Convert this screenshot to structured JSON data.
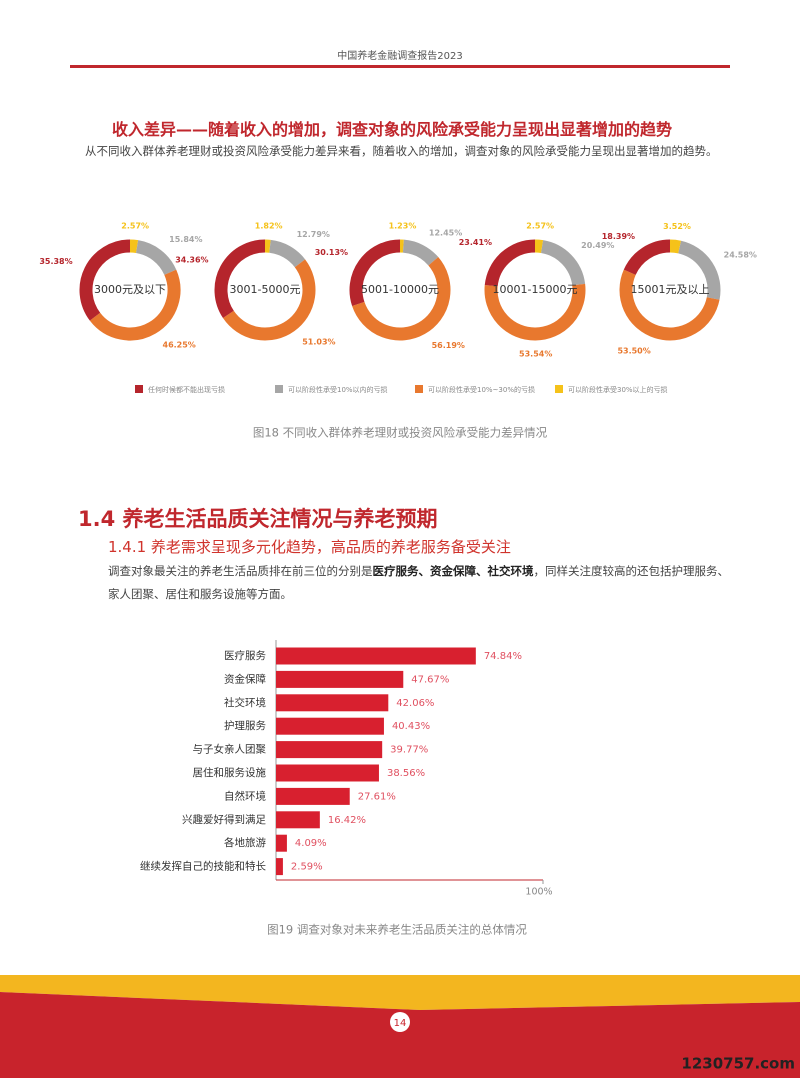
{
  "header": {
    "title": "中国养老金融调查报告2023"
  },
  "section1": {
    "title": "收入差异——随着收入的增加，调查对象的风险承受能力呈现出显著增加的趋势",
    "paragraph": "从不同收入群体养老理财或投资风险承受能力差异来看，随着收入的增加，调查对象的风险承受能力呈现出显著增加的趋势。"
  },
  "section2": {
    "title": "1.4 养老生活品质关注情况与养老预期",
    "subtitle": "1.4.1 养老需求呈现多元化趋势，高品质的养老服务备受关注",
    "paragraph": [
      {
        "text": "调查对象最关注的养老生活品质排在前三位的分别是",
        "bold": false
      },
      {
        "text": "医疗服务、资金保障、社交环境",
        "bold": true
      },
      {
        "text": "，同样关注度较高的还包括护理服务、家人团聚、居住和服务设施等方面。",
        "bold": false
      }
    ]
  },
  "chart_data": [
    {
      "type": "donut",
      "categories": [
        "任何时候都不能出现亏损",
        "可以阶段性承受10%以内的亏损",
        "可以阶段性承受10%~30%的亏损",
        "可以阶段性承受30%以上的亏损"
      ],
      "colors": [
        "#b5252c",
        "#a6a6a6",
        "#e8782e",
        "#f5c21a"
      ],
      "groups": [
        {
          "label": "3000元及以下",
          "values": [
            35.38,
            15.84,
            46.25,
            2.57
          ],
          "value_labels": [
            "35.38%",
            "15.84%",
            "46.25%",
            "2.57%"
          ]
        },
        {
          "label": "3001-5000元",
          "values": [
            34.36,
            12.79,
            51.03,
            1.82
          ],
          "value_labels": [
            "34.36%",
            "12.79%",
            "51.03%",
            "1.82%"
          ]
        },
        {
          "label": "5001-10000元",
          "values": [
            30.13,
            12.45,
            56.19,
            1.23
          ],
          "value_labels": [
            "30.13%",
            "12.45%",
            "56.19%",
            "1.23%"
          ]
        },
        {
          "label": "10001-15000元",
          "values": [
            23.41,
            20.49,
            53.54,
            2.57
          ],
          "value_labels": [
            "23.41%",
            "20.49%",
            "53.54%",
            "2.57%"
          ]
        },
        {
          "label": "15001元及以上",
          "values": [
            18.39,
            24.58,
            53.5,
            3.52
          ],
          "value_labels": [
            "18.39%",
            "24.58%",
            "53.50%",
            "3.52%"
          ]
        }
      ],
      "caption": "图18   不同收入群体养老理财或投资风险承受能力差异情况"
    },
    {
      "type": "hbar",
      "categories": [
        "医疗服务",
        "资金保障",
        "社交环境",
        "护理服务",
        "与子女亲人团聚",
        "居住和服务设施",
        "自然环境",
        "兴趣爱好得到满足",
        "各地旅游",
        "继续发挥自己的技能和特长"
      ],
      "values": [
        74.84,
        47.67,
        42.06,
        40.43,
        39.77,
        38.56,
        27.61,
        16.42,
        4.09,
        2.59
      ],
      "value_labels": [
        "74.84%",
        "47.67%",
        "42.06%",
        "40.43%",
        "39.77%",
        "38.56%",
        "27.61%",
        "16.42%",
        "4.09%",
        "2.59%"
      ],
      "color": "#d8202f",
      "xlim": [
        0,
        100
      ],
      "xticks": [
        {
          "value": 100,
          "label": "100%"
        }
      ],
      "caption": "图19   调查对象对未来养老生活品质关注的总体情况"
    }
  ],
  "footer": {
    "page_number": "14",
    "watermark": "1230757.com"
  }
}
